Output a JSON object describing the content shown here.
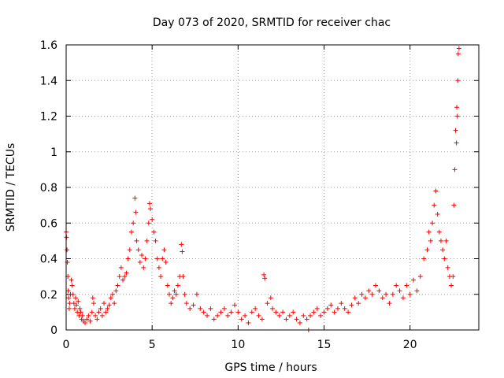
{
  "chart_data": {
    "type": "scatter",
    "title": "Day 073 of 2020, SRMTID for receiver chac",
    "xlabel": "GPS time / hours",
    "ylabel": "SRMTID / TECUs",
    "xlim": [
      0,
      24
    ],
    "ylim": [
      0,
      1.6
    ],
    "xticks": [
      0,
      5,
      10,
      15,
      20
    ],
    "xtick_labels": [
      "0",
      "5",
      "10",
      "15",
      "20"
    ],
    "yticks": [
      0,
      0.2,
      0.4,
      0.6,
      0.8,
      1,
      1.2,
      1.4,
      1.6
    ],
    "ytick_labels": [
      "0",
      "0.2",
      "0.4",
      "0.6",
      "0.8",
      "1",
      "1.2",
      "1.4",
      "1.6"
    ],
    "grid": true,
    "marker": "+",
    "marker_color": "#ff0000",
    "series": [
      {
        "name": "SRMTID",
        "points": [
          [
            0.0,
            0.55
          ],
          [
            0.02,
            0.52
          ],
          [
            0.05,
            0.45
          ],
          [
            0.07,
            0.38
          ],
          [
            0.1,
            0.3
          ],
          [
            0.12,
            0.22
          ],
          [
            0.15,
            0.18
          ],
          [
            0.18,
            0.12
          ],
          [
            0.2,
            0.15
          ],
          [
            0.25,
            0.2
          ],
          [
            0.3,
            0.28
          ],
          [
            0.35,
            0.25
          ],
          [
            0.4,
            0.2
          ],
          [
            0.45,
            0.15
          ],
          [
            0.5,
            0.12
          ],
          [
            0.55,
            0.18
          ],
          [
            0.6,
            0.14
          ],
          [
            0.65,
            0.1
          ],
          [
            0.7,
            0.16
          ],
          [
            0.75,
            0.08
          ],
          [
            0.8,
            0.12
          ],
          [
            0.85,
            0.1
          ],
          [
            0.9,
            0.06
          ],
          [
            0.95,
            0.08
          ],
          [
            1.0,
            0.05
          ],
          [
            1.1,
            0.04
          ],
          [
            1.2,
            0.06
          ],
          [
            1.3,
            0.08
          ],
          [
            1.4,
            0.05
          ],
          [
            1.5,
            0.1
          ],
          [
            1.55,
            0.18
          ],
          [
            1.6,
            0.15
          ],
          [
            1.7,
            0.08
          ],
          [
            1.8,
            0.06
          ],
          [
            1.9,
            0.1
          ],
          [
            2.0,
            0.12
          ],
          [
            2.1,
            0.08
          ],
          [
            2.2,
            0.15
          ],
          [
            2.3,
            0.1
          ],
          [
            2.4,
            0.12
          ],
          [
            2.5,
            0.14
          ],
          [
            2.6,
            0.18
          ],
          [
            2.7,
            0.2
          ],
          [
            2.8,
            0.15
          ],
          [
            2.9,
            0.22
          ],
          [
            3.0,
            0.25
          ],
          [
            3.1,
            0.3
          ],
          [
            3.2,
            0.35
          ],
          [
            3.3,
            0.28
          ],
          [
            3.4,
            0.3
          ],
          [
            3.5,
            0.32
          ],
          [
            3.6,
            0.4
          ],
          [
            3.7,
            0.45
          ],
          [
            3.8,
            0.55
          ],
          [
            3.9,
            0.6
          ],
          [
            4.0,
            0.74
          ],
          [
            4.05,
            0.66
          ],
          [
            4.1,
            0.5
          ],
          [
            4.2,
            0.45
          ],
          [
            4.3,
            0.38
          ],
          [
            4.4,
            0.42
          ],
          [
            4.5,
            0.35
          ],
          [
            4.6,
            0.4
          ],
          [
            4.7,
            0.5
          ],
          [
            4.8,
            0.6
          ],
          [
            4.85,
            0.71
          ],
          [
            4.9,
            0.68
          ],
          [
            5.0,
            0.62
          ],
          [
            5.1,
            0.55
          ],
          [
            5.2,
            0.5
          ],
          [
            5.3,
            0.4
          ],
          [
            5.4,
            0.35
          ],
          [
            5.5,
            0.3
          ],
          [
            5.6,
            0.4
          ],
          [
            5.7,
            0.45
          ],
          [
            5.8,
            0.38
          ],
          [
            5.9,
            0.25
          ],
          [
            6.0,
            0.2
          ],
          [
            6.1,
            0.15
          ],
          [
            6.2,
            0.18
          ],
          [
            6.3,
            0.22
          ],
          [
            6.4,
            0.2
          ],
          [
            6.5,
            0.25
          ],
          [
            6.6,
            0.3
          ],
          [
            6.7,
            0.48
          ],
          [
            6.75,
            0.44
          ],
          [
            6.8,
            0.3
          ],
          [
            6.9,
            0.2
          ],
          [
            7.0,
            0.15
          ],
          [
            7.2,
            0.12
          ],
          [
            7.4,
            0.14
          ],
          [
            7.6,
            0.2
          ],
          [
            7.8,
            0.12
          ],
          [
            8.0,
            0.1
          ],
          [
            8.2,
            0.08
          ],
          [
            8.4,
            0.12
          ],
          [
            8.6,
            0.06
          ],
          [
            8.8,
            0.08
          ],
          [
            9.0,
            0.1
          ],
          [
            9.2,
            0.12
          ],
          [
            9.4,
            0.08
          ],
          [
            9.6,
            0.1
          ],
          [
            9.8,
            0.14
          ],
          [
            10.0,
            0.1
          ],
          [
            10.2,
            0.06
          ],
          [
            10.4,
            0.08
          ],
          [
            10.6,
            0.04
          ],
          [
            10.8,
            0.1
          ],
          [
            11.0,
            0.12
          ],
          [
            11.2,
            0.08
          ],
          [
            11.4,
            0.06
          ],
          [
            11.5,
            0.31
          ],
          [
            11.55,
            0.29
          ],
          [
            11.7,
            0.15
          ],
          [
            11.9,
            0.18
          ],
          [
            12.0,
            0.12
          ],
          [
            12.2,
            0.1
          ],
          [
            12.4,
            0.08
          ],
          [
            12.6,
            0.1
          ],
          [
            12.8,
            0.06
          ],
          [
            13.0,
            0.08
          ],
          [
            13.2,
            0.1
          ],
          [
            13.4,
            0.06
          ],
          [
            13.6,
            0.04
          ],
          [
            13.8,
            0.08
          ],
          [
            14.0,
            0.06
          ],
          [
            14.1,
            0.0
          ],
          [
            14.2,
            0.08
          ],
          [
            14.4,
            0.1
          ],
          [
            14.6,
            0.12
          ],
          [
            14.8,
            0.08
          ],
          [
            15.0,
            0.1
          ],
          [
            15.2,
            0.12
          ],
          [
            15.4,
            0.14
          ],
          [
            15.6,
            0.1
          ],
          [
            15.8,
            0.12
          ],
          [
            16.0,
            0.15
          ],
          [
            16.2,
            0.12
          ],
          [
            16.4,
            0.1
          ],
          [
            16.6,
            0.14
          ],
          [
            16.8,
            0.18
          ],
          [
            17.0,
            0.15
          ],
          [
            17.2,
            0.2
          ],
          [
            17.4,
            0.18
          ],
          [
            17.6,
            0.22
          ],
          [
            17.8,
            0.2
          ],
          [
            18.0,
            0.25
          ],
          [
            18.2,
            0.22
          ],
          [
            18.4,
            0.18
          ],
          [
            18.6,
            0.2
          ],
          [
            18.8,
            0.15
          ],
          [
            19.0,
            0.2
          ],
          [
            19.2,
            0.25
          ],
          [
            19.4,
            0.22
          ],
          [
            19.6,
            0.18
          ],
          [
            19.8,
            0.25
          ],
          [
            20.0,
            0.2
          ],
          [
            20.2,
            0.28
          ],
          [
            20.4,
            0.22
          ],
          [
            20.6,
            0.3
          ],
          [
            20.8,
            0.4
          ],
          [
            21.0,
            0.45
          ],
          [
            21.1,
            0.55
          ],
          [
            21.2,
            0.5
          ],
          [
            21.3,
            0.6
          ],
          [
            21.4,
            0.7
          ],
          [
            21.5,
            0.78
          ],
          [
            21.6,
            0.65
          ],
          [
            21.7,
            0.55
          ],
          [
            21.8,
            0.5
          ],
          [
            21.9,
            0.45
          ],
          [
            22.0,
            0.4
          ],
          [
            22.1,
            0.5
          ],
          [
            22.2,
            0.35
          ],
          [
            22.3,
            0.3
          ],
          [
            22.4,
            0.25
          ],
          [
            22.5,
            0.3
          ],
          [
            22.55,
            0.7
          ],
          [
            22.6,
            0.9
          ],
          [
            22.65,
            1.12
          ],
          [
            22.7,
            1.05
          ],
          [
            22.72,
            1.25
          ],
          [
            22.75,
            1.2
          ],
          [
            22.78,
            1.4
          ],
          [
            22.8,
            1.55
          ],
          [
            22.85,
            1.58
          ]
        ]
      }
    ]
  }
}
